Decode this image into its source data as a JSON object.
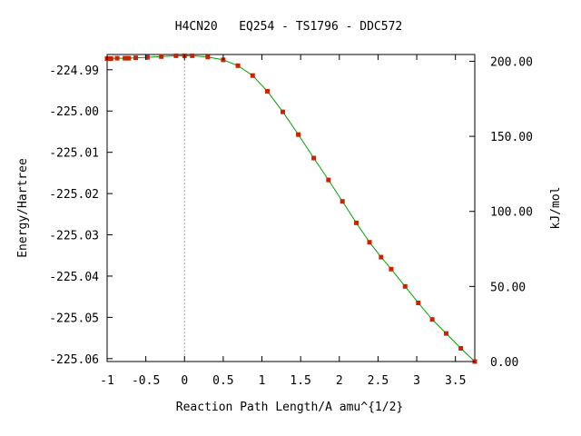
{
  "chart_data": {
    "type": "line",
    "title": "H4CN20   EQ254 - TS1796 - DDC572",
    "xlabel": "Reaction Path Length/A amu^{1/2}",
    "ylabel": "Energy/Hartree",
    "y2label": "kJ/mol",
    "xlim": [
      -1.0,
      3.75
    ],
    "ylim": [
      -225.0607,
      -224.9863
    ],
    "y2lim": [
      0.0,
      204.5
    ],
    "x_ticks": [
      "-1",
      "-0.5",
      "0",
      "0.5",
      "1",
      "1.5",
      "2",
      "2.5",
      "3",
      "3.5"
    ],
    "x_tick_values": [
      -1,
      -0.5,
      0,
      0.5,
      1,
      1.5,
      2,
      2.5,
      3,
      3.5
    ],
    "y_ticks": [
      "-224.99",
      "-225.00",
      "-225.01",
      "-225.02",
      "-225.03",
      "-225.04",
      "-225.05",
      "-225.06"
    ],
    "y_tick_values": [
      -224.99,
      -225.0,
      -225.01,
      -225.02,
      -225.03,
      -225.04,
      -225.05,
      -225.06
    ],
    "y2_ticks": [
      "200.00",
      "150.00",
      "100.00",
      "50.00",
      "0.00"
    ],
    "y2_tick_values": [
      200,
      150,
      100,
      50,
      0
    ],
    "ts_marker_x": 0.0,
    "series": [
      {
        "line_color": "#00a000",
        "marker_color": "#cc2200",
        "x": [
          -1.0,
          -0.97,
          -0.95,
          -0.87,
          -0.77,
          -0.74,
          -0.72,
          -0.63,
          -0.48,
          -0.3,
          -0.11,
          0.0,
          0.1,
          0.3,
          0.5,
          0.69,
          0.88,
          1.07,
          1.27,
          1.47,
          1.67,
          1.86,
          2.04,
          2.22,
          2.39,
          2.54,
          2.67,
          2.85,
          3.02,
          3.2,
          3.38,
          3.57,
          3.75
        ],
        "y": [
          -224.9873,
          -224.9873,
          -224.9873,
          -224.9872,
          -224.9872,
          -224.9872,
          -224.9872,
          -224.9871,
          -224.987,
          -224.9868,
          -224.9866,
          -224.9866,
          -224.9866,
          -224.9869,
          -224.9876,
          -224.989,
          -224.9914,
          -224.9952,
          -225.0002,
          -225.0057,
          -225.0114,
          -225.0167,
          -225.0219,
          -225.0271,
          -225.0318,
          -225.0354,
          -225.0383,
          -225.0425,
          -225.0465,
          -225.0505,
          -225.0539,
          -225.0575,
          -225.0607
        ]
      }
    ]
  }
}
